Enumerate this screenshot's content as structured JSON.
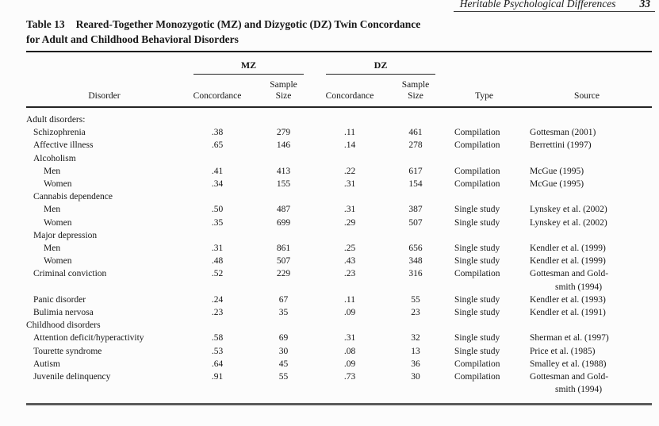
{
  "page_header": {
    "title": "Heritable Psychological Differences",
    "page_number": "33"
  },
  "table": {
    "caption": {
      "label": "Table 13",
      "line1": "Reared-Together Monozygotic (MZ) and Dizygotic (DZ) Twin Concordance",
      "line2": "for Adult and Childhood Behavioral Disorders"
    },
    "headers": {
      "group_mz": "MZ",
      "group_dz": "DZ",
      "disorder": "Disorder",
      "concordance": "Concordance",
      "sample": [
        "Sample",
        "Size"
      ],
      "type": "Type",
      "source": "Source"
    },
    "rows": [
      {
        "label": "Adult disorders:",
        "indent": 0
      },
      {
        "label": "Schizophrenia",
        "indent": 1,
        "mz_concordance": ".38",
        "mz_sample": "279",
        "dz_concordance": ".11",
        "dz_sample": "461",
        "type": "Compilation",
        "source": [
          "Gottesman (2001)"
        ]
      },
      {
        "label": "Affective illness",
        "indent": 1,
        "mz_concordance": ".65",
        "mz_sample": "146",
        "dz_concordance": ".14",
        "dz_sample": "278",
        "type": "Compilation",
        "source": [
          "Berrettini (1997)"
        ]
      },
      {
        "label": "Alcoholism",
        "indent": 1
      },
      {
        "label": "Men",
        "indent": 2,
        "mz_concordance": ".41",
        "mz_sample": "413",
        "dz_concordance": ".22",
        "dz_sample": "617",
        "type": "Compilation",
        "source": [
          "McGue (1995)"
        ]
      },
      {
        "label": "Women",
        "indent": 2,
        "mz_concordance": ".34",
        "mz_sample": "155",
        "dz_concordance": ".31",
        "dz_sample": "154",
        "type": "Compilation",
        "source": [
          "McGue (1995)"
        ]
      },
      {
        "label": "Cannabis dependence",
        "indent": 1
      },
      {
        "label": "Men",
        "indent": 2,
        "mz_concordance": ".50",
        "mz_sample": "487",
        "dz_concordance": ".31",
        "dz_sample": "387",
        "type": "Single study",
        "source": [
          "Lynskey et al. (2002)"
        ]
      },
      {
        "label": "Women",
        "indent": 2,
        "mz_concordance": ".35",
        "mz_sample": "699",
        "dz_concordance": ".29",
        "dz_sample": "507",
        "type": "Single study",
        "source": [
          "Lynskey et al. (2002)"
        ]
      },
      {
        "label": "Major depression",
        "indent": 1
      },
      {
        "label": "Men",
        "indent": 2,
        "mz_concordance": ".31",
        "mz_sample": "861",
        "dz_concordance": ".25",
        "dz_sample": "656",
        "type": "Single study",
        "source": [
          "Kendler et al. (1999)"
        ]
      },
      {
        "label": "Women",
        "indent": 2,
        "mz_concordance": ".48",
        "mz_sample": "507",
        "dz_concordance": ".43",
        "dz_sample": "348",
        "type": "Single study",
        "source": [
          "Kendler et al. (1999)"
        ]
      },
      {
        "label": "Criminal conviction",
        "indent": 1,
        "mz_concordance": ".52",
        "mz_sample": "229",
        "dz_concordance": ".23",
        "dz_sample": "316",
        "type": "Compilation",
        "source": [
          "Gottesman and Gold-",
          "smith (1994)"
        ]
      },
      {
        "label": "Panic disorder",
        "indent": 1,
        "mz_concordance": ".24",
        "mz_sample": "67",
        "dz_concordance": ".11",
        "dz_sample": "55",
        "type": "Single study",
        "source": [
          "Kendler et al. (1993)"
        ]
      },
      {
        "label": "Bulimia nervosa",
        "indent": 1,
        "mz_concordance": ".23",
        "mz_sample": "35",
        "dz_concordance": ".09",
        "dz_sample": "23",
        "type": "Single study",
        "source": [
          "Kendler et al. (1991)"
        ]
      },
      {
        "label": "Childhood disorders",
        "indent": 0
      },
      {
        "label": "Attention deficit/hyperactivity",
        "indent": 1,
        "mz_concordance": ".58",
        "mz_sample": "69",
        "dz_concordance": ".31",
        "dz_sample": "32",
        "type": "Single study",
        "source": [
          "Sherman et al. (1997)"
        ]
      },
      {
        "label": "Tourette syndrome",
        "indent": 1,
        "mz_concordance": ".53",
        "mz_sample": "30",
        "dz_concordance": ".08",
        "dz_sample": "13",
        "type": "Single study",
        "source": [
          "Price et al. (1985)"
        ]
      },
      {
        "label": "Autism",
        "indent": 1,
        "mz_concordance": ".64",
        "mz_sample": "45",
        "dz_concordance": ".09",
        "dz_sample": "36",
        "type": "Compilation",
        "source": [
          "Smalley et al. (1988)"
        ]
      },
      {
        "label": "Juvenile delinquency",
        "indent": 1,
        "mz_concordance": ".91",
        "mz_sample": "55",
        "dz_concordance": ".73",
        "dz_sample": "30",
        "type": "Compilation",
        "source": [
          "Gottesman and Gold-",
          "smith (1994)"
        ]
      }
    ]
  },
  "colors": {
    "ink": "#171717",
    "paper": "#fcfcfc",
    "bottom_rule": "#5a5a5a"
  }
}
